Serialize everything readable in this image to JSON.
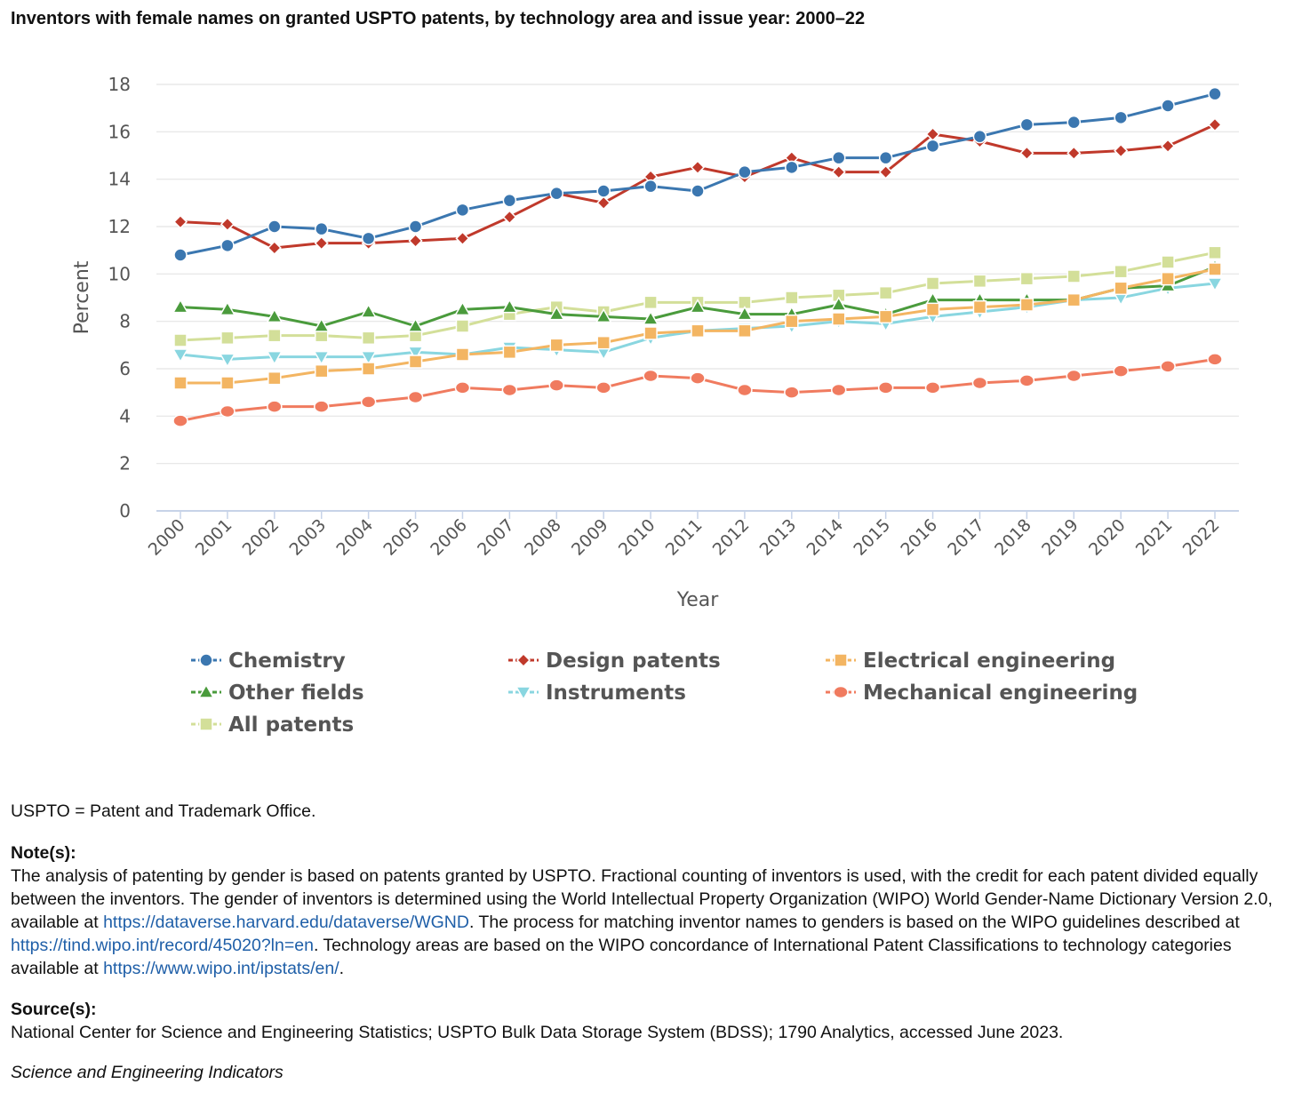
{
  "title": "Inventors with female names on granted USPTO patents, by technology area and issue year: 2000–22",
  "chart_data": {
    "type": "line",
    "xlabel": "Year",
    "ylabel": "Percent",
    "ylim": [
      0,
      18
    ],
    "yticks": [
      0,
      2,
      4,
      6,
      8,
      10,
      12,
      14,
      16,
      18
    ],
    "grid": true,
    "legend_position": "bottom",
    "x": [
      "2000",
      "2001",
      "2002",
      "2003",
      "2004",
      "2005",
      "2006",
      "2007",
      "2008",
      "2009",
      "2010",
      "2011",
      "2012",
      "2013",
      "2014",
      "2015",
      "2016",
      "2017",
      "2018",
      "2019",
      "2020",
      "2021",
      "2022"
    ],
    "series": [
      {
        "name": "Chemistry",
        "color": "#3b77b0",
        "marker": "circle",
        "values": [
          10.8,
          11.2,
          12.0,
          11.9,
          11.5,
          12.0,
          12.7,
          13.1,
          13.4,
          13.5,
          13.7,
          13.5,
          14.3,
          14.5,
          14.9,
          14.9,
          15.4,
          15.8,
          16.3,
          16.4,
          16.6,
          17.1,
          17.6
        ]
      },
      {
        "name": "Design patents",
        "color": "#c0392b",
        "marker": "diamond",
        "values": [
          12.2,
          12.1,
          11.1,
          11.3,
          11.3,
          11.4,
          11.5,
          12.4,
          13.4,
          13.0,
          14.1,
          14.5,
          14.1,
          14.9,
          14.3,
          14.3,
          15.9,
          15.6,
          15.1,
          15.1,
          15.2,
          15.4,
          16.3
        ]
      },
      {
        "name": "Electrical engineering",
        "color": "#f3b562",
        "marker": "square",
        "values": [
          5.4,
          5.4,
          5.6,
          5.9,
          6.0,
          6.3,
          6.6,
          6.7,
          7.0,
          7.1,
          7.5,
          7.6,
          7.6,
          8.0,
          8.1,
          8.2,
          8.5,
          8.6,
          8.7,
          8.9,
          9.4,
          9.8,
          10.2
        ]
      },
      {
        "name": "Other fields",
        "color": "#4a9b3c",
        "marker": "triangle-up",
        "values": [
          8.6,
          8.5,
          8.2,
          7.8,
          8.4,
          7.8,
          8.5,
          8.6,
          8.3,
          8.2,
          8.1,
          8.6,
          8.3,
          8.3,
          8.7,
          8.3,
          8.9,
          8.9,
          8.9,
          8.9,
          9.4,
          9.5,
          10.3
        ]
      },
      {
        "name": "Instruments",
        "color": "#89d6e0",
        "marker": "triangle-down",
        "values": [
          6.6,
          6.4,
          6.5,
          6.5,
          6.5,
          6.7,
          6.6,
          6.9,
          6.8,
          6.7,
          7.3,
          7.6,
          7.7,
          7.8,
          8.0,
          7.9,
          8.2,
          8.4,
          8.6,
          8.9,
          9.0,
          9.4,
          9.6
        ]
      },
      {
        "name": "Mechanical engineering",
        "color": "#f07b5f",
        "marker": "circle-flat",
        "values": [
          3.8,
          4.2,
          4.4,
          4.4,
          4.6,
          4.8,
          5.2,
          5.1,
          5.3,
          5.2,
          5.7,
          5.6,
          5.1,
          5.0,
          5.1,
          5.2,
          5.2,
          5.4,
          5.5,
          5.7,
          5.9,
          6.1,
          6.4
        ]
      },
      {
        "name": "All patents",
        "color": "#d3df99",
        "marker": "square",
        "values": [
          7.2,
          7.3,
          7.4,
          7.4,
          7.3,
          7.4,
          7.8,
          8.3,
          8.6,
          8.4,
          8.8,
          8.8,
          8.8,
          9.0,
          9.1,
          9.2,
          9.6,
          9.7,
          9.8,
          9.9,
          10.1,
          10.5,
          10.9
        ]
      }
    ]
  },
  "notes": {
    "abbrev": "USPTO = Patent and Trademark Office.",
    "note_heading": "Note(s):",
    "note_part1": "The analysis of patenting by gender is based on patents granted by USPTO. Fractional counting of inventors is used, with the credit for each patent divided equally between the inventors. The gender of inventors is determined using the World Intellectual Property Organization (WIPO) World Gender-Name Dictionary Version 2.0, available at ",
    "note_link1": "https://dataverse.harvard.edu/dataverse/WGND",
    "note_part2": ". The process for matching inventor names to genders is based on the WIPO guidelines described at ",
    "note_link2": "https://tind.wipo.int/record/45020?ln=en",
    "note_part3": ". Technology areas are based on the WIPO concordance of International Patent Classifications to technology categories available at ",
    "note_link3": "https://www.wipo.int/ipstats/en/",
    "note_part4": ".",
    "source_heading": "Source(s):",
    "source_text": "National Center for Science and Engineering Statistics; USPTO Bulk Data Storage System (BDSS); 1790 Analytics, accessed June 2023.",
    "credit": "Science and Engineering Indicators"
  }
}
